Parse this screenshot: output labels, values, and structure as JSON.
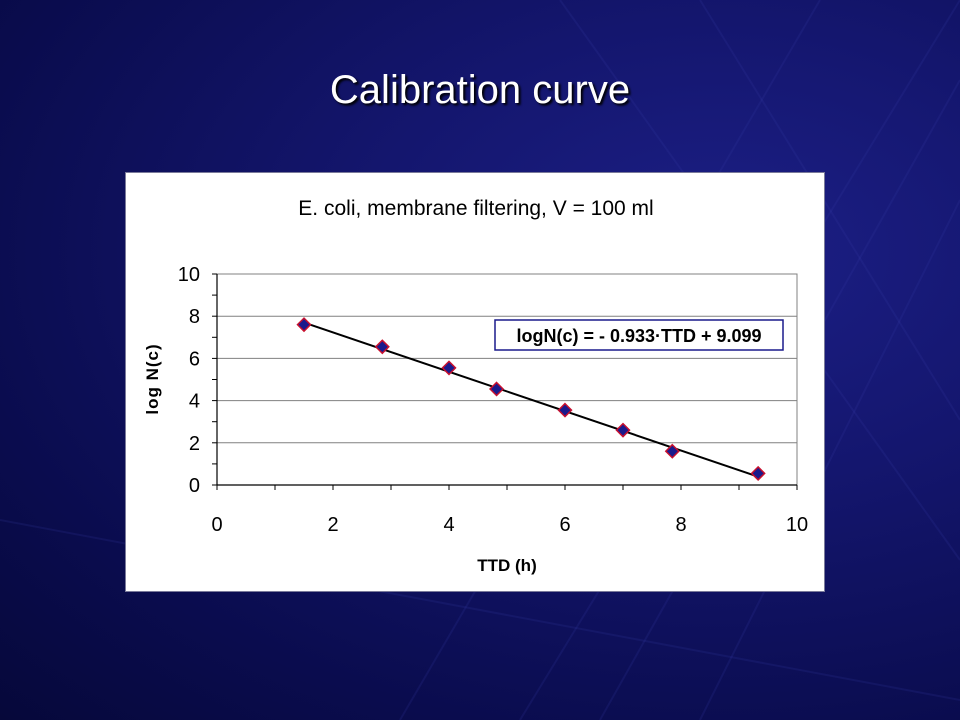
{
  "slide": {
    "title": "Calibration curve",
    "background_color": "#14166e",
    "title_color": "#ffffff"
  },
  "chart_data": {
    "type": "scatter",
    "title": "E. coli,  membrane filtering, V = 100 ml",
    "xlabel": "TTD (h)",
    "ylabel": "log N(c)",
    "xlim": [
      0,
      10
    ],
    "ylim": [
      0,
      10
    ],
    "x_ticks": [
      "0",
      "2",
      "4",
      "6",
      "8",
      "10"
    ],
    "y_ticks": [
      "0",
      "2",
      "4",
      "6",
      "8",
      "10"
    ],
    "grid": "horizontal",
    "marker": "diamond",
    "marker_fill": "#1a1a8c",
    "marker_edge": "#c8102e",
    "line_color": "#000000",
    "series": [
      {
        "x": [
          1.5,
          2.85,
          4.0,
          4.82,
          6.0,
          7.0,
          7.85,
          9.33
        ],
        "y": [
          7.6,
          6.55,
          5.55,
          4.55,
          3.55,
          2.6,
          1.6,
          0.55
        ]
      }
    ],
    "trendline": {
      "slope": -0.933,
      "intercept": 9.099,
      "x_range": [
        1.5,
        9.33
      ]
    },
    "annotation": "logN(c) = - 0.933·TTD + 9.099",
    "annotation_color": "#1a1a8c"
  }
}
